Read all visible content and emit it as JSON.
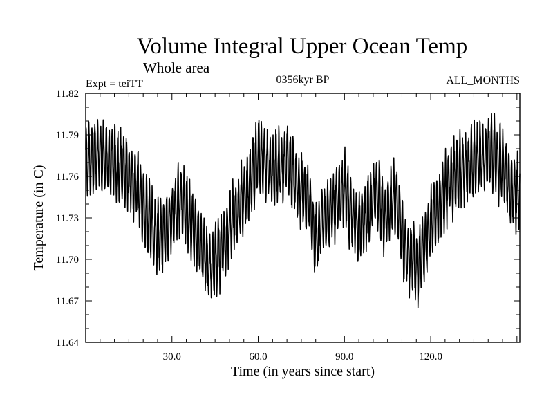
{
  "chart_data": {
    "type": "line",
    "title": "Volume Integral Upper Ocean Temp",
    "subtitle": "Whole area",
    "expt_label": "Expt = teiTT",
    "period_label": "0356kyr BP",
    "months_label": "ALL_MONTHS",
    "xlabel": "Time (in years since start)",
    "ylabel": "Temperature (in C)",
    "xlim": [
      0,
      151
    ],
    "ylim": [
      11.64,
      11.82
    ],
    "x_ticks": [
      30,
      60,
      90,
      120
    ],
    "x_tick_labels": [
      "30.0",
      "60.0",
      "90.0",
      "120.0"
    ],
    "y_ticks": [
      11.64,
      11.67,
      11.7,
      11.73,
      11.76,
      11.79,
      11.82
    ],
    "y_tick_labels": [
      "11.64",
      "11.67",
      "11.70",
      "11.73",
      "11.76",
      "11.79",
      "11.82"
    ],
    "grid": false,
    "series": [
      {
        "name": "Volume integral upper ocean temperature",
        "sampling": "monthly",
        "annual_cycle_amplitude": 0.022,
        "envelope_x": [
          0,
          3,
          6,
          10,
          14,
          18,
          20,
          22,
          24,
          26,
          30,
          33,
          35,
          38,
          40,
          42,
          43.5,
          45,
          48,
          50,
          52,
          55,
          57,
          59,
          60,
          62,
          65,
          68,
          70,
          72,
          74,
          76,
          78,
          79.5,
          80.5,
          82,
          85,
          88,
          90,
          92,
          95,
          98,
          100,
          102,
          104,
          106,
          108,
          110,
          111,
          112,
          114,
          115,
          116,
          118,
          120,
          124,
          128,
          132,
          136,
          138,
          140,
          142,
          144,
          146,
          148,
          151
        ],
        "envelope_y": [
          11.768,
          11.776,
          11.774,
          11.77,
          11.764,
          11.752,
          11.74,
          11.73,
          11.718,
          11.715,
          11.73,
          11.745,
          11.735,
          11.72,
          11.708,
          11.7,
          11.694,
          11.7,
          11.712,
          11.722,
          11.733,
          11.744,
          11.756,
          11.768,
          11.775,
          11.772,
          11.764,
          11.766,
          11.772,
          11.762,
          11.752,
          11.746,
          11.74,
          11.716,
          11.712,
          11.728,
          11.735,
          11.742,
          11.752,
          11.735,
          11.725,
          11.732,
          11.744,
          11.748,
          11.73,
          11.74,
          11.744,
          11.722,
          11.708,
          11.702,
          11.704,
          11.688,
          11.698,
          11.712,
          11.726,
          11.744,
          11.76,
          11.766,
          11.77,
          11.772,
          11.778,
          11.776,
          11.77,
          11.762,
          11.75,
          11.748
        ]
      }
    ]
  }
}
